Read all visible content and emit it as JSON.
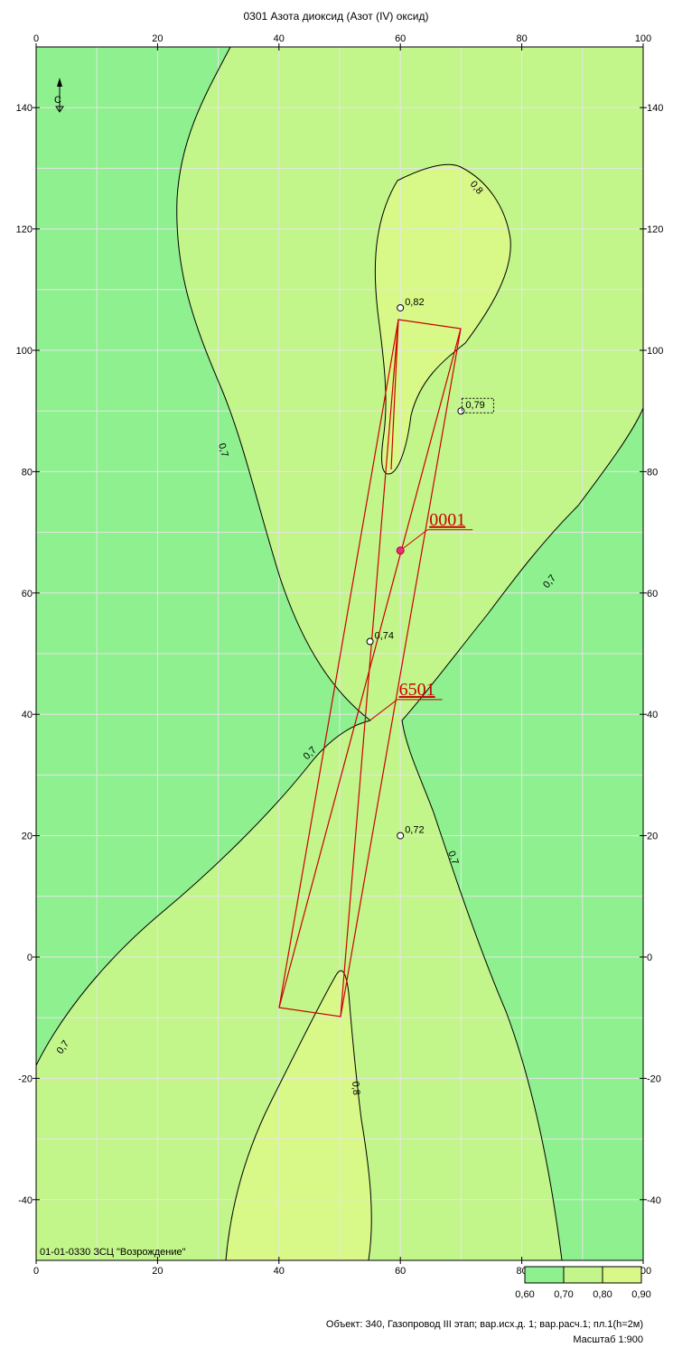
{
  "map": {
    "title": "0301 Азота диоксид (Азот (IV) оксид)",
    "corner_label": "01-01-0330 ЗСЦ \"Возрождение\"",
    "north_label": "С",
    "x_axis": {
      "ticks": [
        0,
        20,
        40,
        60,
        80,
        100
      ],
      "labels": [
        "0",
        "20",
        "40",
        "60",
        "80",
        "100"
      ]
    },
    "y_axis": {
      "ticks": [
        140,
        120,
        100,
        80,
        60,
        40,
        20,
        0,
        -20,
        -40
      ],
      "labels": [
        "140",
        "120",
        "100",
        "80",
        "60",
        "40",
        "20",
        "0",
        "-20",
        "-40"
      ]
    },
    "range": {
      "xmin": 0,
      "xmax": 100,
      "ymin": -50,
      "ymax": 150
    },
    "colors": {
      "zone_low": "#8ef08e",
      "zone_mid": "#c2f58a",
      "zone_high": "#d8f888",
      "source": "#cc0000",
      "grid": "#e6e6e6"
    },
    "isolines": {
      "left_label": "0,7",
      "right_label": "0,7",
      "lower_left_label": "0,7",
      "lower_mid_label": "0,7",
      "bottom_left_label": "0,7",
      "upper_label": "0,8",
      "lower_label": "0,8"
    },
    "points": [
      {
        "label": "0,82",
        "x": 60,
        "y": 107
      },
      {
        "label": "0,79",
        "x": 70,
        "y": 90
      },
      {
        "label": "0,74",
        "x": 55,
        "y": 52
      },
      {
        "label": "0,72",
        "x": 60,
        "y": 20
      }
    ],
    "sources": [
      {
        "id": "0001",
        "x": 60,
        "y": 67
      },
      {
        "id": "6501",
        "x": 55,
        "y": 39
      }
    ]
  },
  "legend": {
    "labels": [
      "0,60",
      "0,70",
      "0,80",
      "0,90"
    ],
    "colors": [
      "#8ef08e",
      "#c2f58a",
      "#d8f888"
    ]
  },
  "footer": {
    "object_line": "Объект: 340, Газопровод III этап; вар.исх.д. 1; вар.расч.1; пл.1(h=2м)",
    "scale_line": "Масштаб 1:900"
  }
}
